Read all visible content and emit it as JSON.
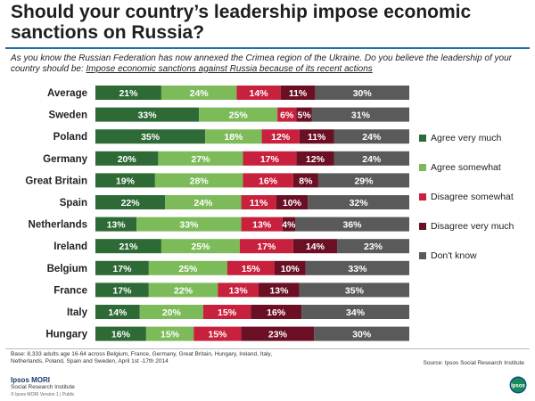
{
  "title": "Should your country’s leadership impose economic sanctions on Russia?",
  "subtitle_intro": "As you know the Russian Federation has now annexed the Crimea region of the Ukraine. Do you believe the leadership of your country should be: ",
  "subtitle_question": "Impose economic sanctions against Russia because of its recent actions",
  "colors": {
    "agree_very_much": "#2d6a35",
    "agree_somewhat": "#7dbb5a",
    "disagree_somewhat": "#c8213d",
    "disagree_very_much": "#6b0f24",
    "dont_know": "#5a5a5a"
  },
  "chart_data": {
    "type": "bar",
    "orientation": "horizontal",
    "stacked": true,
    "categories": [
      "Average",
      "Sweden",
      "Poland",
      "Germany",
      "Great Britain",
      "Spain",
      "Netherlands",
      "Ireland",
      "Belgium",
      "France",
      "Italy",
      "Hungary"
    ],
    "series": [
      {
        "name": "Agree very much",
        "color_key": "agree_very_much",
        "values": [
          21,
          33,
          35,
          20,
          19,
          22,
          13,
          21,
          17,
          17,
          14,
          16
        ]
      },
      {
        "name": "Agree somewhat",
        "color_key": "agree_somewhat",
        "values": [
          24,
          25,
          18,
          27,
          28,
          24,
          33,
          25,
          25,
          22,
          20,
          15
        ]
      },
      {
        "name": "Disagree somewhat",
        "color_key": "disagree_somewhat",
        "values": [
          14,
          6,
          12,
          17,
          16,
          11,
          13,
          17,
          15,
          13,
          15,
          15
        ]
      },
      {
        "name": "Disagree very much",
        "color_key": "disagree_very_much",
        "values": [
          11,
          5,
          11,
          12,
          8,
          10,
          4,
          14,
          10,
          13,
          16,
          23
        ]
      },
      {
        "name": "Don't know",
        "color_key": "dont_know",
        "values": [
          30,
          31,
          24,
          24,
          29,
          32,
          36,
          23,
          33,
          35,
          34,
          30
        ]
      }
    ],
    "value_suffix": "%",
    "xlim": [
      0,
      100
    ],
    "legend_position": "right"
  },
  "legend": [
    "Agree very much",
    "Agree somewhat",
    "Disagree somewhat",
    "Disagree very much",
    "Don't know"
  ],
  "base_note": "Base: 8,333 adults age 16-64 across Belgium, France, Germany, Great Britain, Hungary, Ireland, Italy, Netherlands, Poland, Spain and Sweden, April 1st -17th 2014",
  "source": "Source: Ipsos Social Research Institute",
  "brand": {
    "name": "Ipsos MORI",
    "sub": "Social Research Institute",
    "copyright": "© Ipsos MORI   Version 1 | Public",
    "logo_text": "Ipsos"
  }
}
